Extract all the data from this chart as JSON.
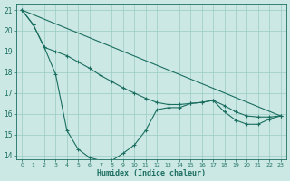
{
  "xlabel": "Humidex (Indice chaleur)",
  "bg_color": "#cce8e4",
  "grid_color": "#99ccc4",
  "line_color": "#1a6e60",
  "xlim": [
    -0.5,
    23.5
  ],
  "ylim": [
    13.8,
    21.3
  ],
  "xticks": [
    0,
    1,
    2,
    3,
    4,
    5,
    6,
    7,
    8,
    9,
    10,
    11,
    12,
    13,
    14,
    15,
    16,
    17,
    18,
    19,
    20,
    21,
    22,
    23
  ],
  "yticks": [
    14,
    15,
    16,
    17,
    18,
    19,
    20,
    21
  ],
  "line1_x": [
    0,
    1,
    2,
    3,
    4,
    5,
    6,
    7,
    8,
    9,
    10,
    11,
    12,
    13,
    14,
    15,
    16,
    17,
    18,
    19,
    20,
    21,
    22,
    23
  ],
  "line1_y": [
    21.0,
    20.3,
    19.2,
    19.0,
    18.8,
    18.5,
    18.2,
    17.85,
    17.55,
    17.25,
    17.0,
    16.75,
    16.55,
    16.45,
    16.45,
    16.5,
    16.55,
    16.65,
    16.4,
    16.1,
    15.9,
    15.85,
    15.85,
    15.9
  ],
  "line2_x": [
    0,
    1,
    2,
    3,
    4,
    5,
    6,
    7,
    8,
    9,
    10,
    11,
    12,
    13,
    14,
    15,
    16,
    17,
    18,
    19,
    20,
    21,
    22,
    23
  ],
  "line2_y": [
    21.0,
    20.3,
    19.2,
    17.9,
    15.2,
    14.3,
    13.9,
    13.75,
    13.75,
    14.1,
    14.5,
    15.2,
    16.2,
    16.3,
    16.3,
    16.5,
    16.55,
    16.65,
    16.1,
    15.7,
    15.5,
    15.5,
    15.75,
    15.9
  ],
  "trend_x": [
    0,
    23
  ],
  "trend_y": [
    21.0,
    15.9
  ]
}
